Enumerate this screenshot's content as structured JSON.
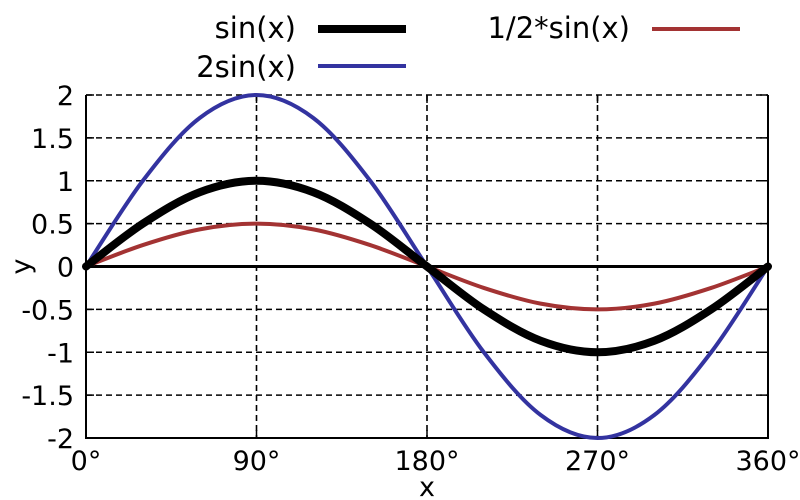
{
  "chart_data": {
    "type": "line",
    "title": "",
    "xlabel": "x",
    "ylabel": "y",
    "xlim": [
      0,
      360
    ],
    "ylim": [
      -2,
      2
    ],
    "grid": true,
    "legend_placement": "top",
    "x_ticks": [
      0,
      90,
      180,
      270,
      360
    ],
    "x_tick_labels": [
      "0°",
      "90°",
      "180°",
      "270°",
      "360°"
    ],
    "y_ticks": [
      2,
      1.5,
      1,
      0.5,
      0,
      -0.5,
      -1,
      -1.5,
      -2
    ],
    "y_tick_labels": [
      "2",
      "1.5",
      "1",
      "0.5",
      "0",
      "-0.5",
      "-1",
      "-1.5",
      "-2"
    ],
    "x": [
      0,
      30,
      60,
      90,
      120,
      150,
      180,
      210,
      240,
      270,
      300,
      330,
      360
    ],
    "series": [
      {
        "name": "sin(x)",
        "color": "#000000",
        "values": [
          0,
          0.5,
          0.866,
          1,
          0.866,
          0.5,
          0,
          -0.5,
          -0.866,
          -1,
          -0.866,
          -0.5,
          0
        ]
      },
      {
        "name": "2sin(x)",
        "color": "#3333a0",
        "values": [
          0,
          1,
          1.732,
          2,
          1.732,
          1,
          0,
          -1,
          -1.732,
          -2,
          -1.732,
          -1,
          0
        ]
      },
      {
        "name": "1/2*sin(x)",
        "color": "#a33333",
        "values": [
          0,
          0.25,
          0.433,
          0.5,
          0.433,
          0.25,
          0,
          -0.25,
          -0.433,
          -0.5,
          -0.433,
          -0.25,
          0
        ]
      }
    ]
  }
}
